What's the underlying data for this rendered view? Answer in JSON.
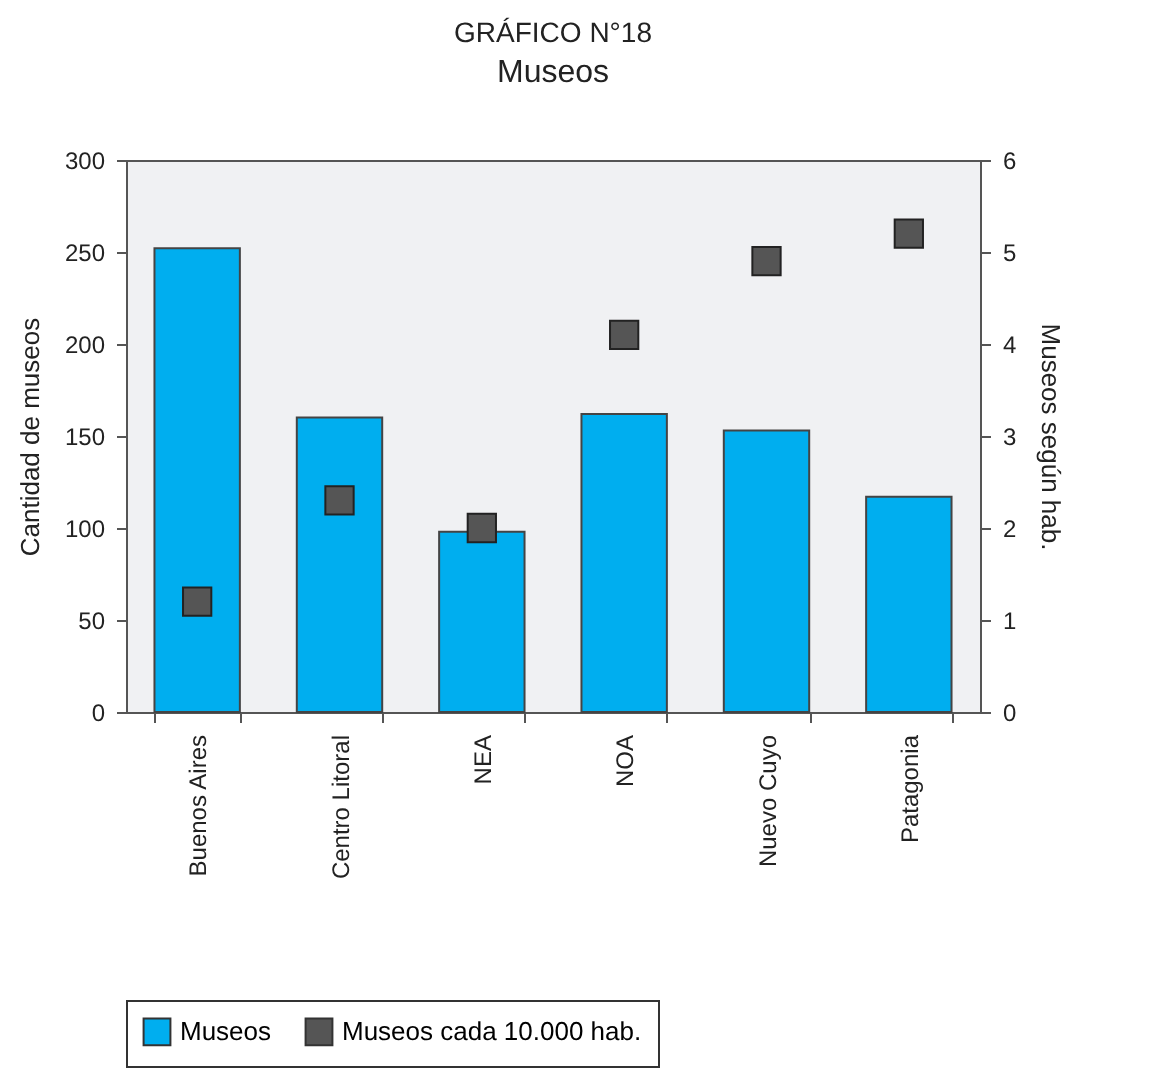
{
  "chart_data": {
    "type": "bar",
    "title": "GRÁFICO N°18",
    "subtitle": "Museos",
    "ylabel": "Cantidad de museos",
    "y2label": "Museos según hab.",
    "categories": [
      "Buenos Aires",
      "Centro Litoral",
      "NEA",
      "NOA",
      "Nuevo Cuyo",
      "Patagonia"
    ],
    "series": [
      {
        "name": "Museos",
        "color": "#00aeef",
        "values": [
          252,
          160,
          98,
          162,
          153,
          117
        ]
      },
      {
        "name": "Museos cada 10.000 hab.",
        "type": "scatter",
        "axis": "y2",
        "marker": "square",
        "color": "#555555",
        "values": [
          1.2,
          2.3,
          2.0,
          4.1,
          4.9,
          5.2
        ]
      }
    ],
    "ylim": [
      0,
      300
    ],
    "yticks": [
      0,
      50,
      100,
      150,
      200,
      250,
      300
    ],
    "y2lim": [
      0,
      6
    ],
    "y2ticks": [
      0,
      1,
      2,
      3,
      4,
      5,
      6
    ],
    "grid": false,
    "legend": "bottom"
  }
}
